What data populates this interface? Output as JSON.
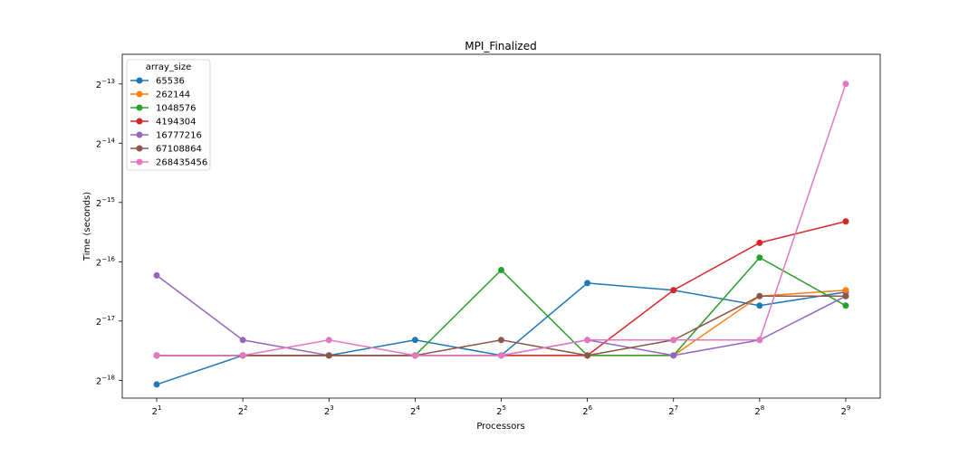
{
  "chart_data": {
    "type": "line",
    "title": "MPI_Finalized",
    "xlabel": "Processors",
    "ylabel": "Time (seconds)",
    "x_scale": "log2",
    "y_scale": "log2",
    "x": [
      1,
      2,
      3,
      4,
      5,
      6,
      7,
      8,
      9
    ],
    "x_ticks": [
      {
        "base": "2",
        "exp": "1"
      },
      {
        "base": "2",
        "exp": "2"
      },
      {
        "base": "2",
        "exp": "3"
      },
      {
        "base": "2",
        "exp": "4"
      },
      {
        "base": "2",
        "exp": "5"
      },
      {
        "base": "2",
        "exp": "6"
      },
      {
        "base": "2",
        "exp": "7"
      },
      {
        "base": "2",
        "exp": "8"
      },
      {
        "base": "2",
        "exp": "9"
      }
    ],
    "y_ticks": [
      {
        "base": "2",
        "exp": "−18",
        "value": -18
      },
      {
        "base": "2",
        "exp": "−17",
        "value": -17
      },
      {
        "base": "2",
        "exp": "−16",
        "value": -16
      },
      {
        "base": "2",
        "exp": "−15",
        "value": -15
      },
      {
        "base": "2",
        "exp": "−14",
        "value": -14
      },
      {
        "base": "2",
        "exp": "−13",
        "value": -13
      }
    ],
    "ylim_log2": [
      -18.3,
      -12.5
    ],
    "xlim_log2": [
      0.6,
      9.4
    ],
    "legend": {
      "title": "array_size",
      "position": "top-left"
    },
    "series": [
      {
        "name": "65536",
        "color": "#1f77b4",
        "values": [
          -18.07,
          -17.58,
          -17.58,
          -17.32,
          -17.58,
          -16.36,
          -16.48,
          -16.74,
          -16.51
        ]
      },
      {
        "name": "262144",
        "color": "#ff7f0e",
        "values": [
          -17.58,
          -17.58,
          -17.58,
          -17.58,
          -17.58,
          -17.58,
          -17.58,
          -16.58,
          -16.48
        ]
      },
      {
        "name": "1048576",
        "color": "#2ca02c",
        "values": [
          -17.58,
          -17.58,
          -17.58,
          -17.58,
          -16.14,
          -17.58,
          -17.58,
          -15.93,
          -16.74
        ]
      },
      {
        "name": "4194304",
        "color": "#d62728",
        "values": [
          -17.58,
          -17.58,
          -17.58,
          -17.58,
          -17.58,
          -17.58,
          -16.48,
          -15.68,
          -15.32
        ]
      },
      {
        "name": "16777216",
        "color": "#9467bd",
        "values": [
          -16.23,
          -17.32,
          -17.58,
          -17.58,
          -17.58,
          -17.32,
          -17.58,
          -17.32,
          -16.58
        ]
      },
      {
        "name": "67108864",
        "color": "#8c564b",
        "values": [
          -17.58,
          -17.58,
          -17.58,
          -17.58,
          -17.32,
          -17.58,
          -17.32,
          -16.58,
          -16.58
        ]
      },
      {
        "name": "268435456",
        "color": "#e377c2",
        "values": [
          -17.58,
          -17.58,
          -17.32,
          -17.58,
          -17.58,
          -17.32,
          -17.32,
          -17.32,
          -13.0
        ]
      }
    ]
  }
}
